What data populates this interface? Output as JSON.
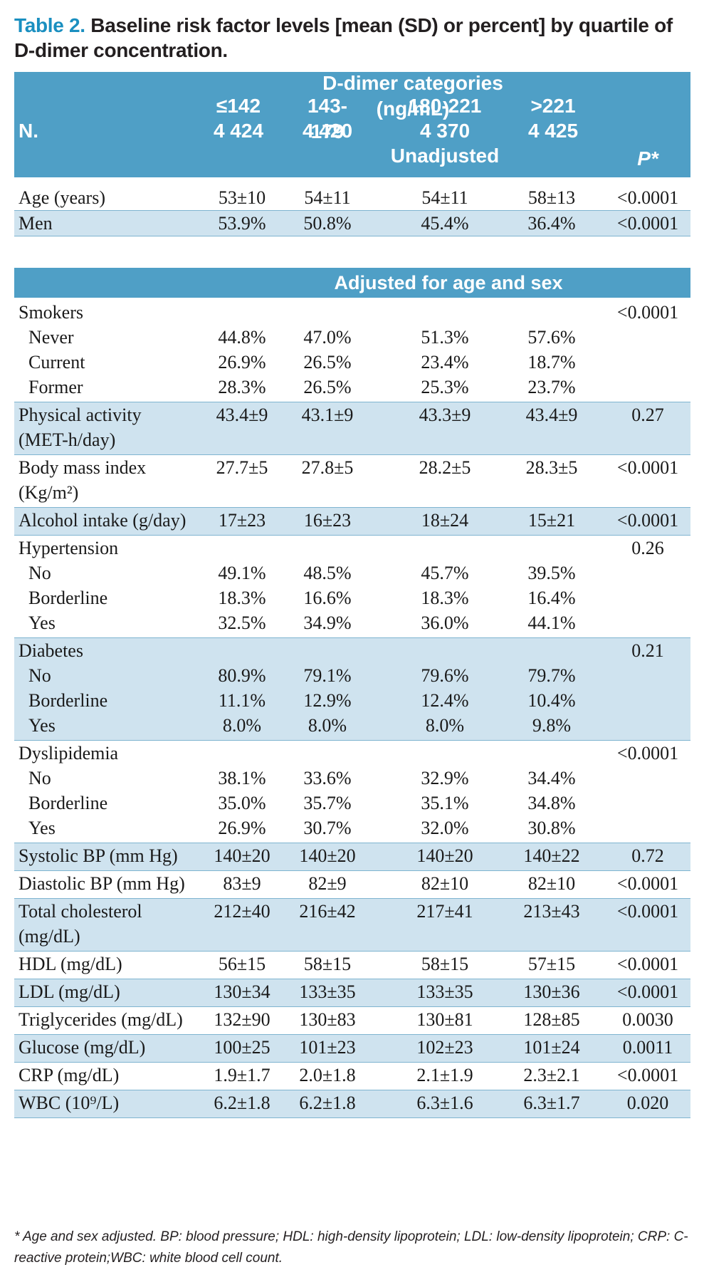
{
  "title": {
    "lead": "Table 2.",
    "text": "Baseline risk factor levels [mean (SD) or percent] by quartile of D-dimer concentration."
  },
  "header": {
    "category_label": "D-dimer categories (ng/mL)",
    "n_label": "N.",
    "columns": [
      {
        "range": "≤142",
        "n": "4 424"
      },
      {
        "range": "143-179",
        "n": "4 420"
      },
      {
        "range": "180-221",
        "n": "4 370"
      },
      {
        "range": ">221",
        "n": "4 425"
      }
    ],
    "unadjusted_label": "Unadjusted",
    "p_label": "P*"
  },
  "unadjusted_rows": [
    {
      "label": "Age (years)",
      "values": [
        "53±10",
        "54±11",
        "54±11",
        "58±13"
      ],
      "p": "<0.0001"
    },
    {
      "label": "Men",
      "values": [
        "53.9%",
        "50.8%",
        "45.4%",
        "36.4%"
      ],
      "p": "<0.0001"
    }
  ],
  "adjusted_label": "Adjusted for age and sex",
  "adjusted_groups": [
    {
      "label": "Smokers",
      "p": "<0.0001",
      "sub": [
        {
          "label": "Never",
          "values": [
            "44.8%",
            "47.0%",
            "51.3%",
            "57.6%"
          ]
        },
        {
          "label": "Current",
          "values": [
            "26.9%",
            "26.5%",
            "23.4%",
            "18.7%"
          ]
        },
        {
          "label": "Former",
          "values": [
            "28.3%",
            "26.5%",
            "25.3%",
            "23.7%"
          ]
        }
      ]
    },
    {
      "label": "Physical activity",
      "label2": "(MET-h/day)",
      "values": [
        "43.4±9",
        "43.1±9",
        "43.3±9",
        "43.4±9"
      ],
      "p": "0.27"
    },
    {
      "label": "Body mass index",
      "label2": "(Kg/m²)",
      "values": [
        "27.7±5",
        "27.8±5",
        "28.2±5",
        "28.3±5"
      ],
      "p": "<0.0001"
    },
    {
      "label": "Alcohol intake (g/day)",
      "values": [
        "17±23",
        "16±23",
        "18±24",
        "15±21"
      ],
      "p": "<0.0001"
    },
    {
      "label": "Hypertension",
      "p": "0.26",
      "sub": [
        {
          "label": "No",
          "values": [
            "49.1%",
            "48.5%",
            "45.7%",
            "39.5%"
          ]
        },
        {
          "label": "Borderline",
          "values": [
            "18.3%",
            "16.6%",
            "18.3%",
            "16.4%"
          ]
        },
        {
          "label": "Yes",
          "values": [
            "32.5%",
            "34.9%",
            "36.0%",
            "44.1%"
          ]
        }
      ]
    },
    {
      "label": "Diabetes",
      "p": "0.21",
      "sub": [
        {
          "label": "No",
          "values": [
            "80.9%",
            "79.1%",
            "79.6%",
            "79.7%"
          ]
        },
        {
          "label": "Borderline",
          "values": [
            "11.1%",
            "12.9%",
            "12.4%",
            "10.4%"
          ]
        },
        {
          "label": "Yes",
          "values": [
            "8.0%",
            "8.0%",
            "8.0%",
            "9.8%"
          ]
        }
      ]
    },
    {
      "label": "Dyslipidemia",
      "p": "<0.0001",
      "sub": [
        {
          "label": "No",
          "values": [
            "38.1%",
            "33.6%",
            "32.9%",
            "34.4%"
          ]
        },
        {
          "label": "Borderline",
          "values": [
            "35.0%",
            "35.7%",
            "35.1%",
            "34.8%"
          ]
        },
        {
          "label": "Yes",
          "values": [
            "26.9%",
            "30.7%",
            "32.0%",
            "30.8%"
          ]
        }
      ]
    },
    {
      "label": "Systolic BP (mm Hg)",
      "values": [
        "140±20",
        "140±20",
        "140±20",
        "140±22"
      ],
      "p": "0.72"
    },
    {
      "label": "Diastolic BP (mm Hg)",
      "values": [
        "83±9",
        "82±9",
        "82±10",
        "82±10"
      ],
      "p": "<0.0001"
    },
    {
      "label": "Total cholesterol",
      "label2": "(mg/dL)",
      "values": [
        "212±40",
        "216±42",
        "217±41",
        "213±43"
      ],
      "p": "<0.0001"
    },
    {
      "label": "HDL (mg/dL)",
      "values": [
        "56±15",
        "58±15",
        "58±15",
        "57±15"
      ],
      "p": "<0.0001"
    },
    {
      "label": "LDL (mg/dL)",
      "values": [
        "130±34",
        "133±35",
        "133±35",
        "130±36"
      ],
      "p": "<0.0001"
    },
    {
      "label": "Triglycerides (mg/dL)",
      "values": [
        "132±90",
        "130±83",
        "130±81",
        "128±85"
      ],
      "p": "0.0030"
    },
    {
      "label": "Glucose (mg/dL)",
      "values": [
        "100±25",
        "101±23",
        "102±23",
        "101±24"
      ],
      "p": "0.0011"
    },
    {
      "label": "CRP (mg/dL)",
      "values": [
        "1.9±1.7",
        "2.0±1.8",
        "2.1±1.9",
        "2.3±2.1"
      ],
      "p": "<0.0001"
    },
    {
      "label": "WBC (10⁹/L)",
      "values": [
        "6.2±1.8",
        "6.2±1.8",
        "6.3±1.6",
        "6.3±1.7"
      ],
      "p": "0.020"
    }
  ],
  "footnote": "* Age and sex adjusted. BP: blood pressure; HDL: high-density lipoprotein; LDL: low-density lipoprotein; CRP: C-reactive protein;WBC: white blood cell count."
}
